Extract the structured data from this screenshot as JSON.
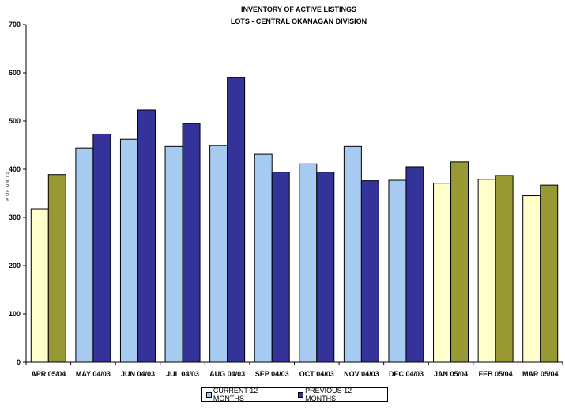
{
  "chart_data": {
    "type": "bar",
    "title": "INVENTORY OF ACTIVE LISTINGS",
    "subtitle": "LOTS - CENTRAL OKANAGAN DIVISION",
    "ylabel": "# OF UNITS",
    "xlabel": "",
    "ylim": [
      0,
      700
    ],
    "yticks": [
      0,
      100,
      200,
      300,
      400,
      500,
      600,
      700
    ],
    "categories": [
      "APR 05/04",
      "MAY 04/03",
      "JUN 04/03",
      "JUL 04/03",
      "AUG 04/03",
      "SEP 04/03",
      "OCT 04/03",
      "NOV 04/03",
      "DEC 04/03",
      "JAN 05/04",
      "FEB 05/04",
      "MAR 05/04"
    ],
    "series": [
      {
        "name": "CURRENT 12 MONTHS",
        "values": [
          318,
          444,
          462,
          447,
          449,
          431,
          411,
          447,
          377,
          371,
          379,
          345
        ]
      },
      {
        "name": "PREVIOUS 12 MONTHS",
        "values": [
          389,
          473,
          523,
          495,
          590,
          394,
          394,
          376,
          405,
          415,
          387,
          367
        ]
      }
    ],
    "colors": {
      "current": "#a6caf0",
      "previous": "#333399",
      "current_alt": "#ffffcc",
      "previous_alt": "#999933"
    },
    "alt_color_categories": [
      "APR 05/04",
      "JAN 05/04",
      "FEB 05/04",
      "MAR 05/04"
    ],
    "grid": false,
    "legend_position": "bottom"
  }
}
